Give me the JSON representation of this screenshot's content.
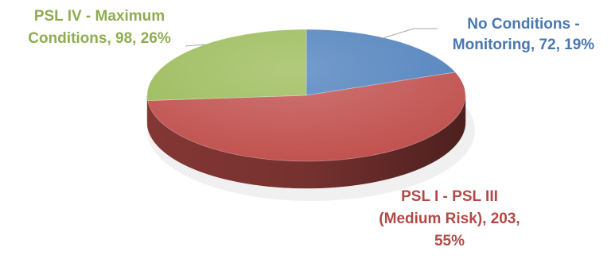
{
  "chart_data": {
    "type": "pie",
    "style": "3d",
    "title": "",
    "slices": [
      {
        "category": "No Conditions - Monitoring",
        "value": 72,
        "percent": "19%",
        "color": "#4f81bd",
        "label_lines": [
          "No Conditions -",
          "Monitoring, 72, 19%"
        ]
      },
      {
        "category": "PSL I - PSL III (Medium Risk)",
        "value": 203,
        "percent": "55%",
        "color": "#c0504d",
        "label_lines": [
          "PSL I - PSL III",
          "(Medium Risk), 203,",
          "55%"
        ]
      },
      {
        "category": "PSL IV - Maximum Conditions",
        "value": 98,
        "percent": "26%",
        "color": "#9bbb59",
        "label_lines": [
          "PSL IV - Maximum",
          "Conditions, 98, 26%"
        ]
      }
    ],
    "legend": "none",
    "data_labels": "outside with leader lines"
  }
}
